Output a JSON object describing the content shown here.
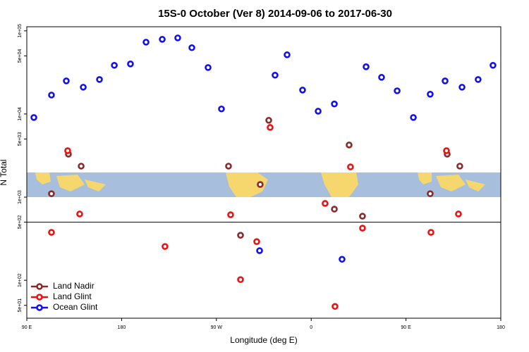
{
  "chart_data": {
    "type": "scatter",
    "title": "15S-0 October (Ver 8)   2014-09-06 to 2017-06-30",
    "x_label": "Longitude (deg E)",
    "y_label": "N Total",
    "xlim": [
      90,
      540
    ],
    "xticks": [
      {
        "value": 90,
        "label": "90 E"
      },
      180,
      {
        "value": 270,
        "label": "90 W"
      },
      {
        "value": 360,
        "label": "0"
      },
      {
        "value": 450,
        "label": "90 E"
      },
      {
        "value": 540,
        "label": "180"
      }
    ],
    "ylim": [
      35,
      112000
    ],
    "log_y": true,
    "yticks": [
      {
        "value": 100000,
        "label": "1e+05"
      },
      {
        "value": 50000,
        "label": "5e+04"
      },
      {
        "value": 10000,
        "label": "1e+04"
      },
      {
        "value": 5000,
        "label": "5e+03"
      },
      {
        "value": 1000,
        "label": "1e+03"
      },
      {
        "value": 500,
        "label": "5e+02"
      },
      {
        "value": 100,
        "label": "1e+02"
      },
      {
        "value": 50,
        "label": "5e+01"
      }
    ],
    "hline": 500,
    "legend": "bottom-left",
    "series": [
      {
        "name": "Land Nadir",
        "color": "#8b2a2a",
        "x": [
          113.4,
          129.5,
          141.6,
          281.5,
          292.9,
          311.6,
          319.7,
          382,
          396,
          408.7,
          473,
          489.1,
          501.1
        ],
        "values": [
          1100,
          3290,
          2360,
          2360,
          348,
          1420,
          8400,
          718,
          4240,
          590,
          1100,
          3290,
          2360
        ]
      },
      {
        "name": "Land Glint",
        "color": "#ee1111",
        "x": [
          113.4,
          128.8,
          140.2,
          221.2,
          283.5,
          292.9,
          308.3,
          321,
          373.2,
          382.6,
          397.3,
          408.7,
          473.7,
          488.4,
          499.8
        ],
        "values": [
          377,
          3620,
          627,
          255,
          614,
          102,
          292,
          6900,
          840,
          48.5,
          2310,
          424,
          377,
          3620,
          627
        ]
      },
      {
        "name": "Ocean Glint",
        "color": "#1111ee",
        "x": [
          96.7,
          113.4,
          127.5,
          143.6,
          159,
          173.1,
          188.4,
          203.2,
          218.6,
          233.3,
          246.7,
          262.1,
          274.8,
          311,
          325.7,
          337.1,
          351.8,
          366.6,
          382,
          389.3,
          412.1,
          426.8,
          441.6,
          457,
          473,
          487.1,
          503.2,
          518.5,
          532.6
        ],
        "values": [
          9080,
          16900,
          25000,
          21000,
          26000,
          38500,
          40000,
          73100,
          79100,
          82200,
          62700,
          36200,
          11500,
          227,
          29300,
          51500,
          19400,
          10800,
          13200,
          179,
          37000,
          27600,
          19000,
          9080,
          17300,
          25000,
          21000,
          26000,
          38500
        ]
      }
    ]
  }
}
